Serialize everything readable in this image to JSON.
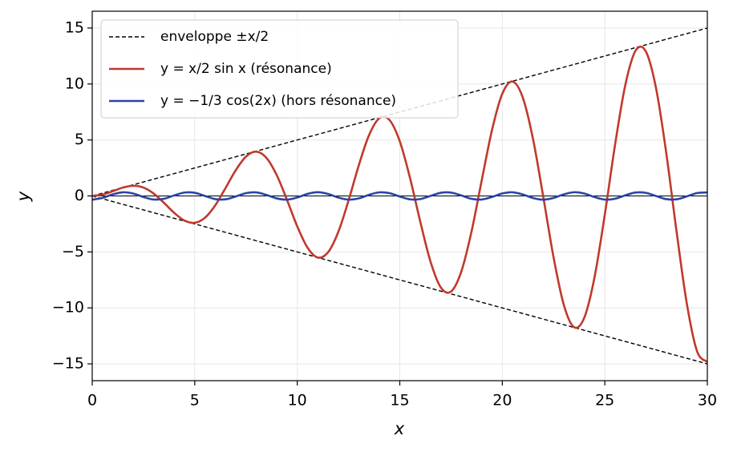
{
  "chart_data": {
    "type": "line",
    "xlabel": "x",
    "ylabel": "y",
    "xlim": [
      0,
      30
    ],
    "ylim": [
      -16.5,
      16.5
    ],
    "xticks": [
      0,
      5,
      10,
      15,
      20,
      25,
      30
    ],
    "yticks": [
      {
        "value": -15,
        "label": "−15"
      },
      {
        "value": -10,
        "label": "−10"
      },
      {
        "value": -5,
        "label": "−5"
      },
      0,
      5,
      10,
      15
    ],
    "grid": true,
    "hline": 0,
    "legend": "upper left",
    "x": [
      0,
      0.5,
      1,
      1.5,
      2,
      2.5,
      3,
      3.5,
      4,
      4.5,
      5,
      5.5,
      6,
      6.5,
      7,
      7.5,
      8,
      8.5,
      9,
      9.5,
      10,
      10.5,
      11,
      11.5,
      12,
      12.5,
      13,
      13.5,
      14,
      14.5,
      15,
      15.5,
      16,
      16.5,
      17,
      17.5,
      18,
      18.5,
      19,
      19.5,
      20,
      20.5,
      21,
      21.5,
      22,
      22.5,
      23,
      23.5,
      24,
      24.5,
      25,
      25.5,
      26,
      26.5,
      27,
      27.5,
      28,
      28.5,
      29,
      29.5,
      30
    ],
    "series": [
      {
        "name": "enveloppe ±x/2",
        "color": "#000000",
        "dashed": true,
        "x": [
          0,
          30
        ],
        "values": [
          0,
          15
        ]
      },
      {
        "color": "#000000",
        "dashed": true,
        "x": [
          0,
          30
        ],
        "values": [
          0,
          -15
        ]
      },
      {
        "name": "y = x/2 sin x (résonance)",
        "color": "#c0392b",
        "values": [
          0,
          0.12,
          0.421,
          0.748,
          0.909,
          0.748,
          0.212,
          -0.614,
          -1.514,
          -2.199,
          -2.397,
          -1.94,
          -0.838,
          0.699,
          2.3,
          3.518,
          3.958,
          3.394,
          1.854,
          -0.357,
          -2.72,
          -4.618,
          -5.5,
          -5.034,
          -3.22,
          -0.414,
          2.731,
          5.426,
          6.934,
          6.778,
          4.877,
          1.6,
          -2.303,
          -5.872,
          -8.172,
          -8.538,
          -6.759,
          -3.168,
          1.424,
          5.904,
          9.129,
          10.218,
          8.785,
          5.071,
          -0.098,
          -5.48,
          -9.731,
          -11.727,
          -10.867,
          -7.245,
          -1.655,
          4.579,
          9.914,
          12.974,
          12.911,
          9.613,
          3.793,
          -3.189,
          -9.622,
          -13.88,
          -14.82
        ]
      },
      {
        "name": "y = −1/3 cos(2x) (hors résonance)",
        "color": "#2a45a5",
        "values": [
          -0.333,
          -0.18,
          0.139,
          0.33,
          0.218,
          -0.095,
          -0.32,
          -0.251,
          0.049,
          0.304,
          0.28,
          -0.001,
          -0.281,
          -0.302,
          -0.046,
          0.253,
          0.319,
          0.092,
          -0.22,
          -0.33,
          -0.136,
          0.183,
          0.333,
          0.178,
          -0.141,
          -0.33,
          -0.216,
          0.097,
          0.321,
          0.249,
          -0.051,
          -0.305,
          -0.278,
          0.004,
          0.283,
          0.301,
          0.043,
          -0.255,
          -0.318,
          -0.089,
          0.222,
          0.329,
          0.133,
          -0.185,
          -0.333,
          -0.175,
          0.144,
          0.331,
          0.213,
          -0.1,
          -0.322,
          -0.247,
          0.054,
          0.306,
          0.276,
          -0.007,
          -0.284,
          -0.3,
          -0.04,
          0.257,
          0.317
        ]
      }
    ]
  }
}
